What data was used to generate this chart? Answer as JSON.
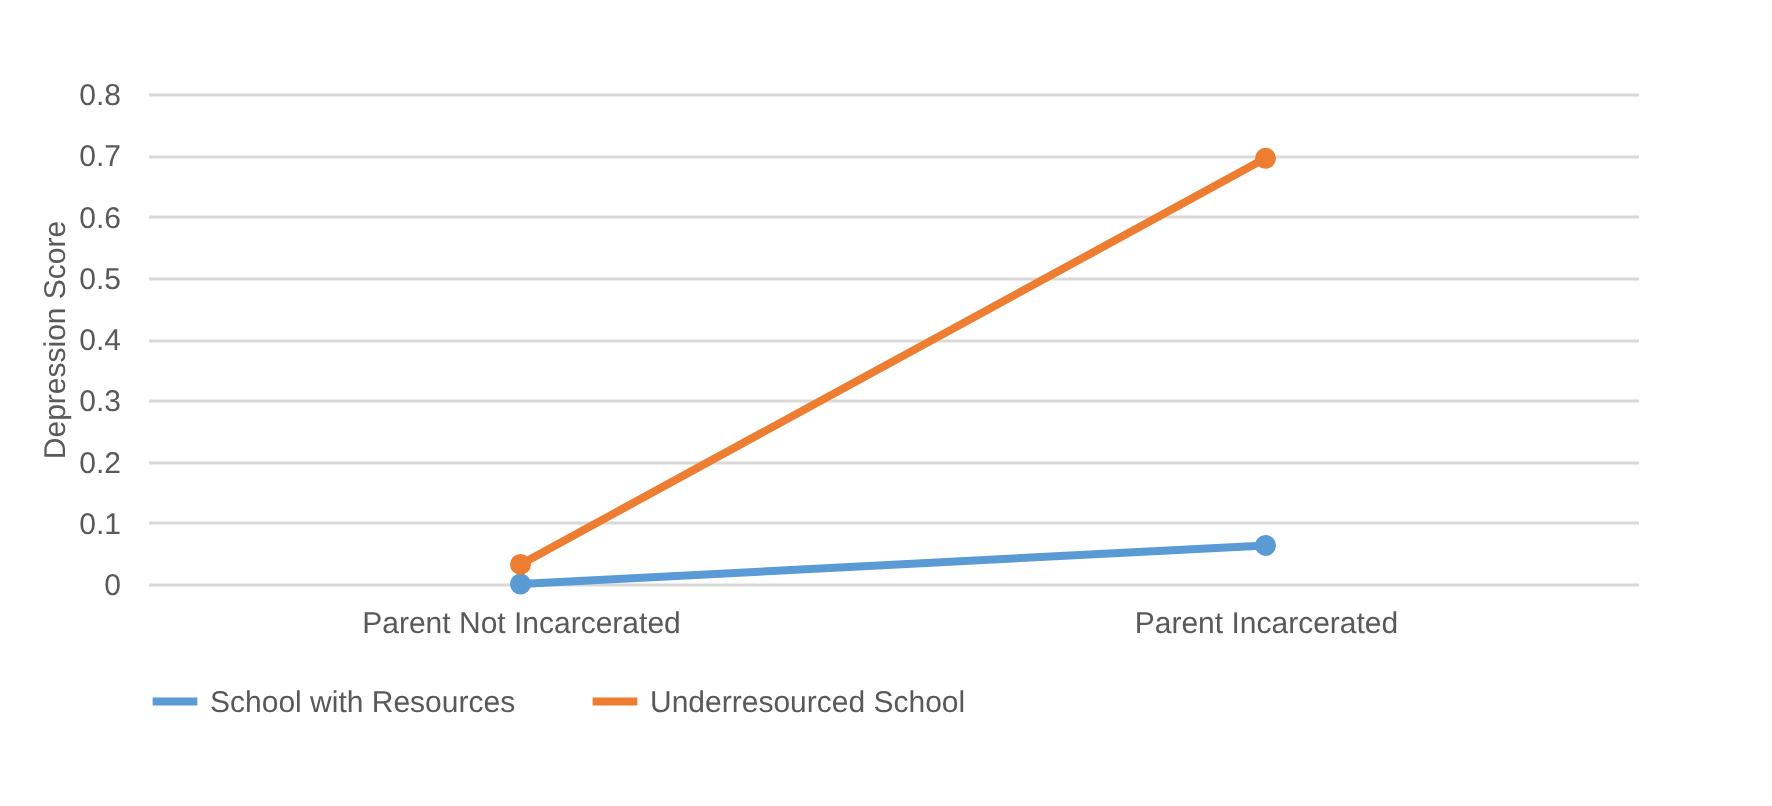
{
  "chart_data": {
    "type": "line",
    "ylabel": "Depression Score",
    "categories": [
      "Parent Not Incarcerated",
      "Parent Incarcerated"
    ],
    "series": [
      {
        "name": "School with Resources",
        "color": "#5b9bd5",
        "values": [
          0.0,
          0.063
        ]
      },
      {
        "name": "Underresourced School",
        "color": "#ed7d31",
        "values": [
          0.032,
          0.695
        ]
      }
    ],
    "ylim": [
      0,
      0.8
    ],
    "yticks": [
      0,
      0.1,
      0.2,
      0.3,
      0.4,
      0.5,
      0.6,
      0.7,
      0.8
    ],
    "grid": "y",
    "legend": "bottom",
    "marker": "circle"
  }
}
